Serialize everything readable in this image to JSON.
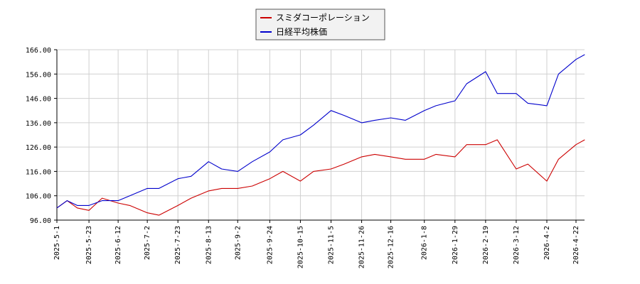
{
  "chart_data": {
    "type": "line",
    "title": "",
    "xlabel": "",
    "ylabel": "",
    "ylim": [
      96.0,
      166.0
    ],
    "y_ticks": [
      "96.00",
      "106.00",
      "116.00",
      "126.00",
      "136.00",
      "146.00",
      "156.00",
      "166.00"
    ],
    "x_ticks": [
      "2025-5-1",
      "2025-5-23",
      "2025-6-12",
      "2025-7-2",
      "2025-7-23",
      "2025-8-13",
      "2025-9-2",
      "2025-9-24",
      "2025-10-15",
      "2025-11-5",
      "2025-11-26",
      "2025-12-16",
      "2026-1-8",
      "2026-1-29",
      "2026-2-19",
      "2026-3-12",
      "2026-4-2",
      "2026-4-22"
    ],
    "grid": true,
    "legend_position": "top-center",
    "series": [
      {
        "name": "スミダコーポレーション",
        "color": "#cc0000",
        "x": [
          "2025-5-1",
          "2025-5-8",
          "2025-5-15",
          "2025-5-23",
          "2025-6-1",
          "2025-6-12",
          "2025-6-20",
          "2025-7-2",
          "2025-7-10",
          "2025-7-23",
          "2025-8-1",
          "2025-8-13",
          "2025-8-22",
          "2025-9-2",
          "2025-9-12",
          "2025-9-24",
          "2025-10-3",
          "2025-10-15",
          "2025-10-24",
          "2025-11-5",
          "2025-11-14",
          "2025-11-26",
          "2025-12-5",
          "2025-12-16",
          "2025-12-26",
          "2026-1-8",
          "2026-1-16",
          "2026-1-29",
          "2026-2-6",
          "2026-2-19",
          "2026-2-27",
          "2026-3-12",
          "2026-3-20",
          "2026-4-2",
          "2026-4-10",
          "2026-4-22",
          "2026-4-28"
        ],
        "values": [
          101,
          104,
          101,
          100,
          105,
          103,
          102,
          99,
          98,
          102,
          105,
          108,
          109,
          109,
          110,
          113,
          116,
          112,
          116,
          117,
          119,
          122,
          123,
          122,
          121,
          121,
          123,
          122,
          127,
          127,
          129,
          117,
          119,
          112,
          121,
          127,
          129
        ]
      },
      {
        "name": "日経平均株価",
        "color": "#0000cc",
        "x": [
          "2025-5-1",
          "2025-5-8",
          "2025-5-15",
          "2025-5-23",
          "2025-6-1",
          "2025-6-12",
          "2025-6-20",
          "2025-7-2",
          "2025-7-10",
          "2025-7-23",
          "2025-8-1",
          "2025-8-13",
          "2025-8-22",
          "2025-9-2",
          "2025-9-12",
          "2025-9-24",
          "2025-10-3",
          "2025-10-15",
          "2025-10-24",
          "2025-11-5",
          "2025-11-14",
          "2025-11-26",
          "2025-12-5",
          "2025-12-16",
          "2025-12-26",
          "2026-1-8",
          "2026-1-16",
          "2026-1-29",
          "2026-2-6",
          "2026-2-19",
          "2026-2-27",
          "2026-3-12",
          "2026-3-20",
          "2026-4-2",
          "2026-4-10",
          "2026-4-22",
          "2026-4-28"
        ],
        "values": [
          101,
          104,
          102,
          102,
          104,
          104,
          106,
          109,
          109,
          113,
          114,
          120,
          117,
          116,
          120,
          124,
          129,
          131,
          135,
          141,
          139,
          136,
          137,
          138,
          137,
          141,
          143,
          145,
          152,
          157,
          148,
          148,
          144,
          143,
          156,
          162,
          164
        ]
      }
    ]
  }
}
